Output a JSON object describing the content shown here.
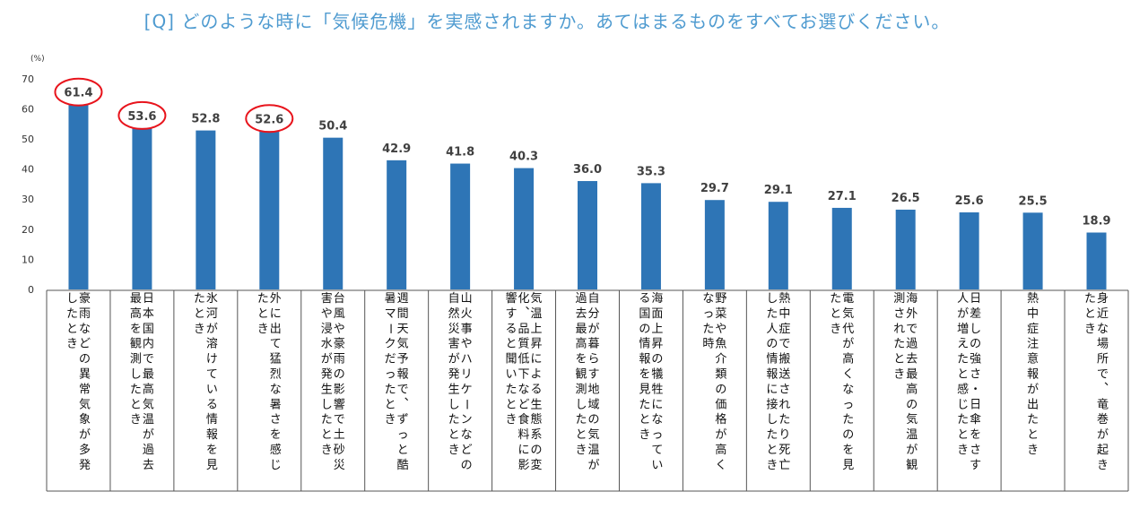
{
  "question": "[Q] どのような時に「気候危機」を実感されますか。あてはまるものをすべてお選びください。",
  "chart_data": {
    "type": "bar",
    "title": "[Q] どのような時に「気候危機」を実感されますか。あてはまるものをすべてお選びください。",
    "y_unit": "(%)",
    "ylim": [
      0,
      70
    ],
    "yticks": [
      0,
      10,
      20,
      30,
      40,
      50,
      60,
      70
    ],
    "bar_color": "#2e75b6",
    "highlight_color": "#e8141c",
    "categories": [
      [
        "豪雨などの異常気象が多発",
        "したとき"
      ],
      [
        "日本国内で最高気温が過去",
        "最高を観測したとき"
      ],
      [
        "氷河が溶けている情報を見",
        "たとき"
      ],
      [
        "外に出て猛烈な暑さを感じ",
        "たとき"
      ],
      [
        "台風や豪雨の影響で土砂災",
        "害や浸水が発生したとき"
      ],
      [
        "週間天気予報で、ずっと酷",
        "暑マークだったとき"
      ],
      [
        "山火事やハリケーンなどの",
        "自然災害が発生したとき"
      ],
      [
        "気温上昇による生態系の変",
        "化、品質低下など食料に影",
        "響すると聞いたとき"
      ],
      [
        "自分が暮らす地域の気温が",
        "過去最高を観測したとき"
      ],
      [
        "海面上昇の犠牲になってい",
        "る国の情報を見たとき"
      ],
      [
        "野菜や魚介類の価格が高く",
        "なった時"
      ],
      [
        "熱中症で搬送されたり死亡",
        "した人の情報に接したとき"
      ],
      [
        "電気代が高くなったのを見",
        "たとき"
      ],
      [
        "海外で過去最高の気温が観",
        "測されたとき"
      ],
      [
        "日差しの強さ・日傘をさす",
        "人が増えたと感じたとき"
      ],
      [
        "熱中症注意報が出たとき"
      ],
      [
        "身近な場所で、竜巻が起き",
        "たとき"
      ]
    ],
    "values": [
      61.4,
      53.6,
      52.8,
      52.6,
      50.4,
      42.9,
      41.8,
      40.3,
      36.0,
      35.3,
      29.7,
      29.1,
      27.1,
      26.5,
      25.6,
      25.5,
      18.9
    ],
    "value_labels": [
      "61.4",
      "53.6",
      "52.8",
      "52.6",
      "50.4",
      "42.9",
      "41.8",
      "40.3",
      "36.0",
      "35.3",
      "29.7",
      "29.1",
      "27.1",
      "26.5",
      "25.6",
      "25.5",
      "18.9"
    ],
    "highlighted": [
      0,
      1,
      3
    ]
  }
}
